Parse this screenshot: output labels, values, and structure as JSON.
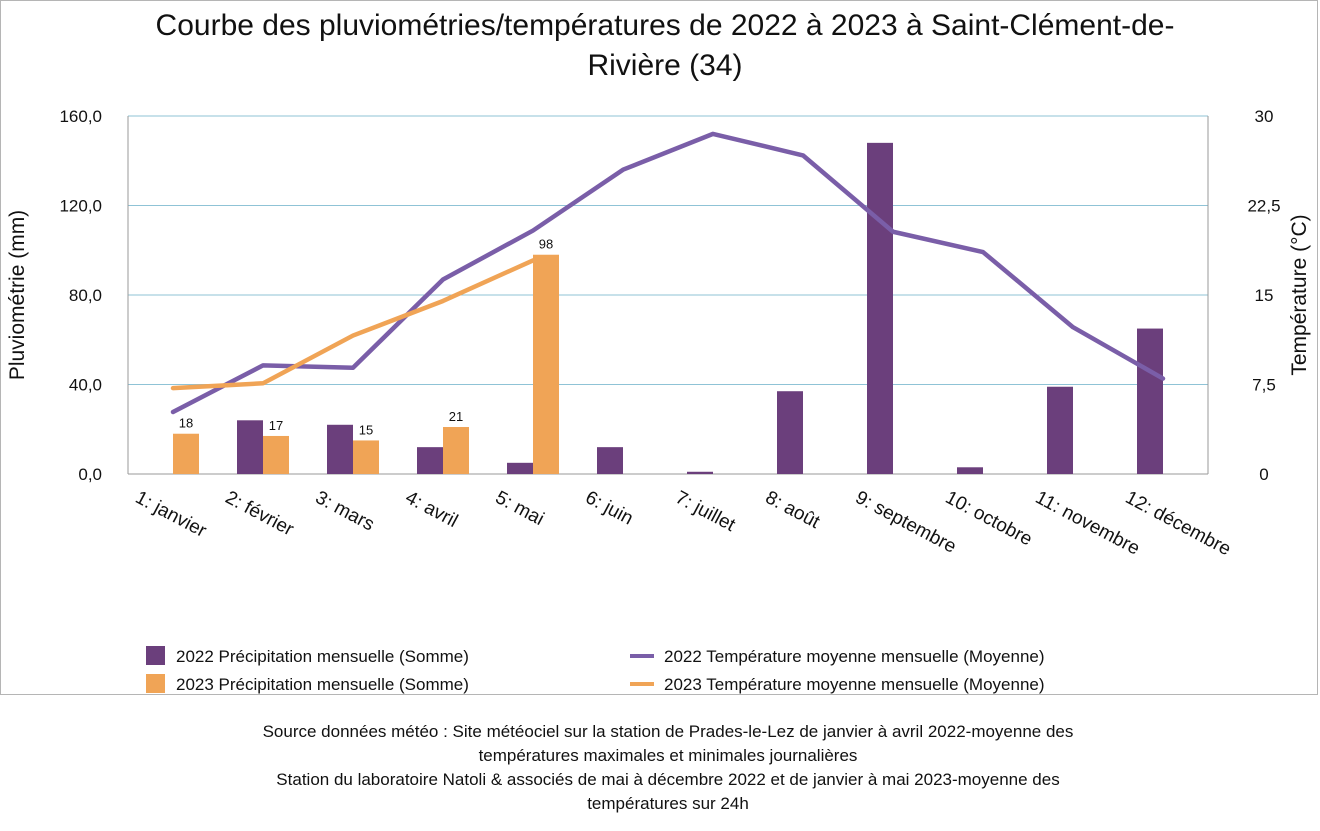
{
  "chart_data": {
    "type": "bar",
    "title": "Courbe des pluviométries/températures de 2022 à 2023 à Saint-Clément-de-Rivière (34)",
    "categories": [
      "1: janvier",
      "2: février",
      "3: mars",
      "4: avril",
      "5: mai",
      "6: juin",
      "7: juillet",
      "8: août",
      "9: septembre",
      "10: octobre",
      "11: novembre",
      "12: décembre"
    ],
    "ylabel": "Pluviométrie (mm)",
    "y2label": "Température (°C)",
    "ylim": [
      0,
      160
    ],
    "y2lim": [
      0,
      30
    ],
    "yticks": [
      "0,0",
      "40,0",
      "80,0",
      "120,0",
      "160,0"
    ],
    "y2ticks": [
      "0",
      "7,5",
      "15",
      "22,5",
      "30"
    ],
    "grid": true,
    "legend_position": "bottom",
    "series": [
      {
        "name": "2022 Précipitation mensuelle (Somme)",
        "type": "bar",
        "axis": "left",
        "color": "#6b3f7c",
        "values": [
          0,
          24,
          22,
          12,
          5,
          12,
          1,
          37,
          148,
          3,
          39,
          65
        ]
      },
      {
        "name": "2023 Précipitation mensuelle (Somme)",
        "type": "bar",
        "axis": "left",
        "color": "#f0a456",
        "values": [
          18,
          17,
          15,
          21,
          98,
          null,
          null,
          null,
          null,
          null,
          null,
          null
        ],
        "data_labels": [
          "18",
          "17",
          "15",
          "21",
          "98"
        ]
      },
      {
        "name": "2022 Température moyenne mensuelle (Moyenne)",
        "type": "line",
        "axis": "right",
        "color": "#7a5ea8",
        "values": [
          5.2,
          9.1,
          8.9,
          16.3,
          20.4,
          25.5,
          28.5,
          26.7,
          20.3,
          18.6,
          12.3,
          8.0
        ]
      },
      {
        "name": "2023 Température moyenne mensuelle (Moyenne)",
        "type": "line",
        "axis": "right",
        "color": "#f0a456",
        "values": [
          7.2,
          7.6,
          11.6,
          14.5,
          17.9,
          null,
          null,
          null,
          null,
          null,
          null,
          null
        ]
      }
    ]
  },
  "source_note": {
    "line1": "Source données météo : Site météociel sur la station de Prades-le-Lez de janvier à avril 2022-moyenne des",
    "line2": "températures maximales et minimales journalières",
    "line3": "Station du laboratoire Natoli & associés  de mai à décembre 2022 et de janvier à mai 2023-moyenne des",
    "line4": "températures sur 24h"
  }
}
